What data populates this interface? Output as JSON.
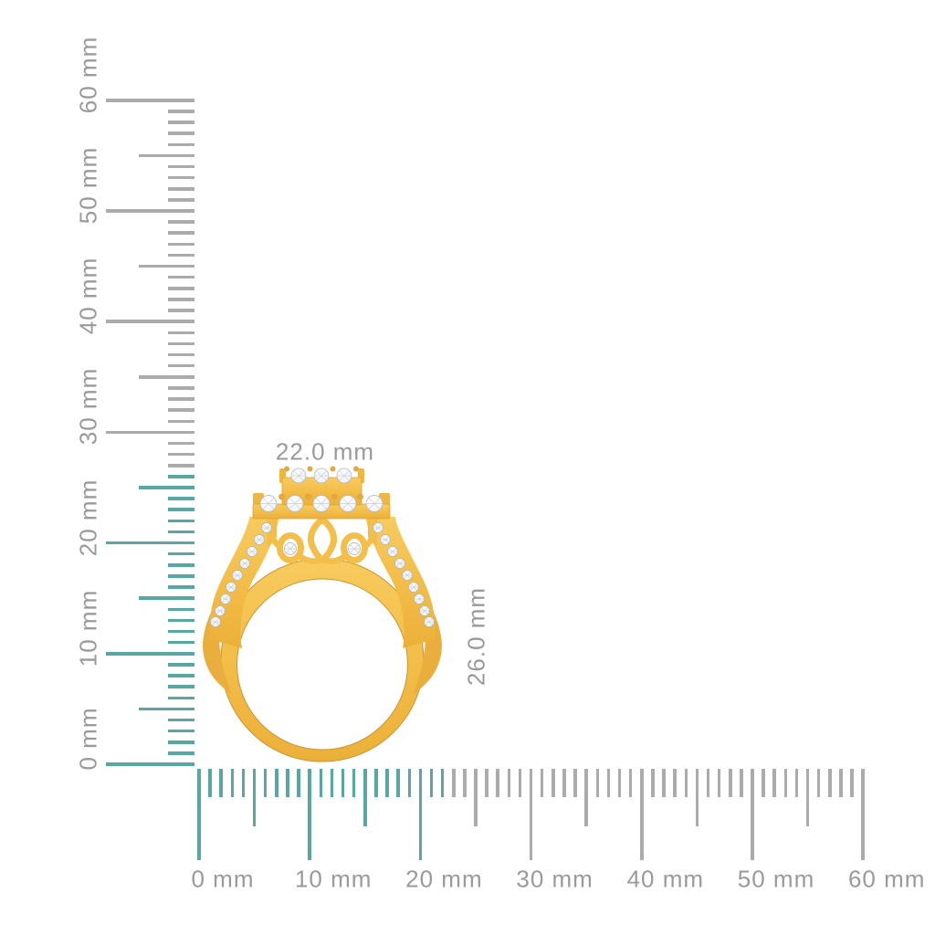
{
  "page": {
    "background": "#FFFFFF"
  },
  "ring": {
    "illustration": "gold-diamond-halo-ring-side-view",
    "width_label": "22.0 mm",
    "height_label": "26.0 mm",
    "gold_color": "#F2BC46",
    "gold_shade_color": "#E8AC3C",
    "outline_color": "#CF9530",
    "diamond_color": "#FFFFFF"
  },
  "rulers": {
    "unit": "mm",
    "horizontal": {
      "labels": [
        "0 mm",
        "10 mm",
        "20 mm",
        "30 mm",
        "40 mm",
        "50 mm",
        "60 mm"
      ],
      "highlight_extent_mm": 22
    },
    "vertical": {
      "labels": [
        "0 mm",
        "10 mm",
        "20 mm",
        "30 mm",
        "40 mm",
        "50 mm",
        "60 mm"
      ],
      "highlight_extent_mm": 26
    },
    "tick_color_highlight": "#58A7A2",
    "tick_color_default": "#ABABAB",
    "label_color": "#9A9A9A"
  }
}
